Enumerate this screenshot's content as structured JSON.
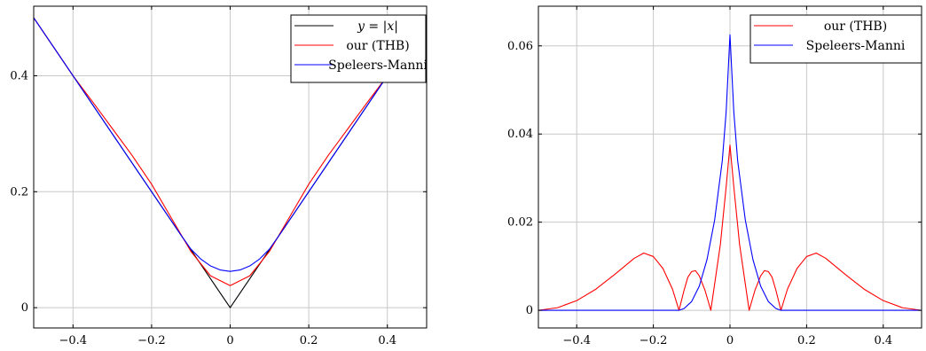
{
  "chart_data": [
    {
      "type": "line",
      "xlim": [
        -0.5,
        0.5
      ],
      "ylim": [
        -0.035,
        0.52
      ],
      "grid": true,
      "legend_placement": "top-right",
      "xticks": [
        -0.4,
        -0.2,
        0,
        0.2,
        0.4
      ],
      "xtick_labels": [
        "−0.4",
        "−0.2",
        "0",
        "0.2",
        "0.4"
      ],
      "yticks": [
        0,
        0.2,
        0.4
      ],
      "ytick_labels": [
        "0",
        "0.2",
        "0.4"
      ],
      "series": [
        {
          "name": "y = |x|",
          "color": "#000000",
          "x": [
            -0.5,
            -0.4,
            -0.3,
            -0.2,
            -0.1,
            0,
            0.1,
            0.2,
            0.3,
            0.4,
            0.5
          ],
          "y": [
            0.5,
            0.4,
            0.3,
            0.2,
            0.1,
            0,
            0.1,
            0.2,
            0.3,
            0.4,
            0.5
          ]
        },
        {
          "name": "our (THB)",
          "color": "#ff0000",
          "x": [
            -0.5,
            -0.4,
            -0.35,
            -0.3,
            -0.25,
            -0.2,
            -0.15,
            -0.1,
            -0.05,
            0,
            0.05,
            0.1,
            0.15,
            0.2,
            0.25,
            0.3,
            0.35,
            0.4,
            0.5
          ],
          "y": [
            0.5,
            0.4,
            0.355,
            0.309,
            0.263,
            0.213,
            0.155,
            0.097,
            0.055,
            0.038,
            0.055,
            0.097,
            0.155,
            0.213,
            0.263,
            0.309,
            0.355,
            0.4,
            0.5
          ]
        },
        {
          "name": "Speleers-Manni",
          "color": "#0000ff",
          "x": [
            -0.5,
            -0.4,
            -0.3,
            -0.2,
            -0.15,
            -0.125,
            -0.1,
            -0.075,
            -0.05,
            -0.025,
            0,
            0.025,
            0.05,
            0.075,
            0.1,
            0.125,
            0.15,
            0.2,
            0.3,
            0.4,
            0.5
          ],
          "y": [
            0.5,
            0.4,
            0.3,
            0.2,
            0.15,
            0.125,
            0.101,
            0.084,
            0.072,
            0.065,
            0.0625,
            0.065,
            0.072,
            0.084,
            0.101,
            0.125,
            0.15,
            0.2,
            0.3,
            0.4,
            0.5
          ]
        }
      ]
    },
    {
      "type": "line",
      "xlim": [
        -0.5,
        0.5
      ],
      "ylim": [
        -0.004,
        0.069
      ],
      "grid": true,
      "legend_placement": "top-right",
      "xticks": [
        -0.4,
        -0.2,
        0,
        0.2,
        0.4
      ],
      "xtick_labels": [
        "−0.4",
        "−0.2",
        "0",
        "0.2",
        "0.4"
      ],
      "yticks": [
        0,
        0.02,
        0.04,
        0.06
      ],
      "ytick_labels": [
        "0",
        "0.02",
        "0.04",
        "0.06"
      ],
      "series": [
        {
          "name": "our (THB)",
          "color": "#ff0000",
          "x": [
            -0.5,
            -0.45,
            -0.4,
            -0.35,
            -0.3,
            -0.25,
            -0.225,
            -0.2,
            -0.175,
            -0.15,
            -0.133,
            -0.12,
            -0.11,
            -0.1,
            -0.09,
            -0.08,
            -0.065,
            -0.05,
            -0.04,
            -0.025,
            -0.01,
            0,
            0.01,
            0.025,
            0.04,
            0.05,
            0.065,
            0.08,
            0.09,
            0.1,
            0.11,
            0.12,
            0.133,
            0.15,
            0.175,
            0.2,
            0.225,
            0.25,
            0.3,
            0.35,
            0.4,
            0.45,
            0.5
          ],
          "y": [
            0,
            0.0006,
            0.0022,
            0.0048,
            0.0082,
            0.0118,
            0.013,
            0.0122,
            0.0095,
            0.0048,
            0,
            0.0045,
            0.0075,
            0.0088,
            0.009,
            0.0078,
            0.0045,
            0,
            0.006,
            0.015,
            0.028,
            0.0375,
            0.028,
            0.015,
            0.006,
            0,
            0.0045,
            0.0078,
            0.009,
            0.0088,
            0.0075,
            0.0045,
            0,
            0.0048,
            0.0095,
            0.0122,
            0.013,
            0.0118,
            0.0082,
            0.0048,
            0.0022,
            0.0006,
            0
          ]
        },
        {
          "name": "Speleers-Manni",
          "color": "#0000ff",
          "x": [
            -0.5,
            -0.15,
            -0.133,
            -0.12,
            -0.1,
            -0.08,
            -0.06,
            -0.04,
            -0.02,
            -0.01,
            0,
            0.01,
            0.02,
            0.04,
            0.06,
            0.08,
            0.1,
            0.12,
            0.133,
            0.15,
            0.5
          ],
          "y": [
            0,
            0,
            0,
            0.0004,
            0.002,
            0.0055,
            0.0115,
            0.0205,
            0.034,
            0.045,
            0.0625,
            0.045,
            0.034,
            0.0205,
            0.0115,
            0.0055,
            0.002,
            0.0004,
            0,
            0,
            0
          ]
        }
      ]
    }
  ]
}
